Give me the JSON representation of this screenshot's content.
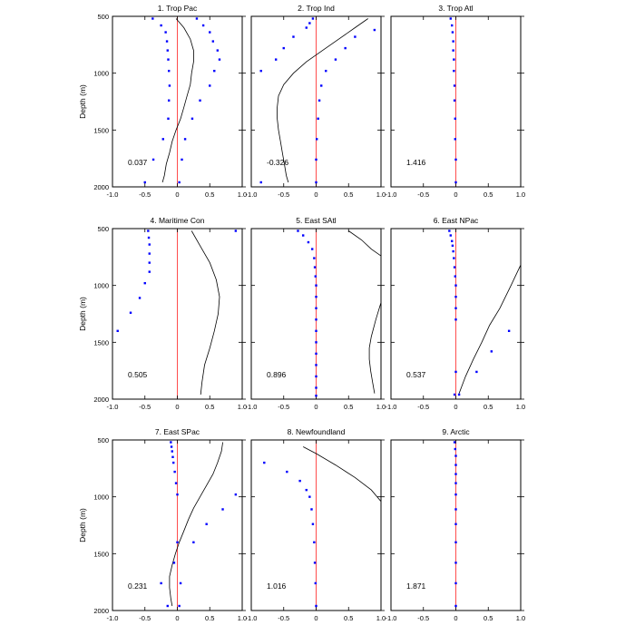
{
  "figure": {
    "ylabel": "Depth (m)",
    "xticks": [
      "-1.0",
      "-0.5",
      "0",
      "0.5",
      "1.0"
    ],
    "yticks": [
      "500",
      "1000",
      "1500",
      "2000"
    ]
  },
  "chart_data": [
    {
      "type": "scatter",
      "title": "1. Trop Pac",
      "annotation": "0.037",
      "xlim": [
        -1,
        1
      ],
      "ylim": [
        500,
        2000
      ],
      "points": [
        [
          -0.38,
          520
        ],
        [
          0.3,
          520
        ],
        [
          -0.25,
          580
        ],
        [
          0.4,
          580
        ],
        [
          -0.18,
          640
        ],
        [
          0.5,
          640
        ],
        [
          -0.16,
          720
        ],
        [
          0.55,
          720
        ],
        [
          -0.15,
          800
        ],
        [
          0.62,
          800
        ],
        [
          -0.14,
          880
        ],
        [
          0.65,
          880
        ],
        [
          -0.13,
          980
        ],
        [
          0.57,
          980
        ],
        [
          -0.12,
          1110
        ],
        [
          0.5,
          1110
        ],
        [
          -0.13,
          1240
        ],
        [
          0.35,
          1240
        ],
        [
          -0.14,
          1400
        ],
        [
          0.23,
          1400
        ],
        [
          -0.22,
          1580
        ],
        [
          0.12,
          1580
        ],
        [
          -0.37,
          1760
        ],
        [
          0.07,
          1760
        ],
        [
          -0.5,
          1960
        ],
        [
          0.03,
          1960
        ]
      ],
      "curve": [
        [
          -0.02,
          520
        ],
        [
          0.1,
          600
        ],
        [
          0.2,
          700
        ],
        [
          0.25,
          800
        ],
        [
          0.25,
          900
        ],
        [
          0.22,
          1000
        ],
        [
          0.2,
          1100
        ],
        [
          0.15,
          1200
        ],
        [
          0.1,
          1300
        ],
        [
          0.05,
          1400
        ],
        [
          -0.02,
          1500
        ],
        [
          -0.08,
          1600
        ],
        [
          -0.12,
          1700
        ],
        [
          -0.17,
          1800
        ],
        [
          -0.2,
          1900
        ],
        [
          -0.23,
          1960
        ]
      ]
    },
    {
      "type": "scatter",
      "title": "2. Trop Ind",
      "annotation": "-0.326",
      "xlim": [
        -1,
        1
      ],
      "ylim": [
        500,
        2000
      ],
      "points": [
        [
          -0.05,
          520
        ],
        [
          -0.1,
          560
        ],
        [
          -0.15,
          600
        ],
        [
          0.9,
          620
        ],
        [
          -0.35,
          680
        ],
        [
          0.6,
          680
        ],
        [
          -0.5,
          780
        ],
        [
          0.45,
          780
        ],
        [
          -0.62,
          880
        ],
        [
          0.3,
          880
        ],
        [
          -0.85,
          980
        ],
        [
          0.15,
          980
        ],
        [
          0.08,
          1110
        ],
        [
          0.05,
          1240
        ],
        [
          0.03,
          1400
        ],
        [
          0.01,
          1580
        ],
        [
          0.0,
          1760
        ],
        [
          0.0,
          1960
        ],
        [
          -0.85,
          1960
        ]
      ],
      "curve": [
        [
          0.8,
          520
        ],
        [
          0.6,
          600
        ],
        [
          0.35,
          700
        ],
        [
          0.1,
          800
        ],
        [
          -0.15,
          900
        ],
        [
          -0.35,
          1000
        ],
        [
          -0.5,
          1100
        ],
        [
          -0.58,
          1200
        ],
        [
          -0.6,
          1300
        ],
        [
          -0.6,
          1400
        ],
        [
          -0.58,
          1500
        ],
        [
          -0.55,
          1600
        ],
        [
          -0.52,
          1700
        ],
        [
          -0.49,
          1800
        ],
        [
          -0.46,
          1900
        ],
        [
          -0.43,
          1960
        ]
      ]
    },
    {
      "type": "scatter",
      "title": "3. Trop Atl",
      "annotation": "1.416",
      "xlim": [
        -1,
        1
      ],
      "ylim": [
        500,
        2000
      ],
      "points": [
        [
          -0.08,
          520
        ],
        [
          -0.06,
          580
        ],
        [
          -0.05,
          640
        ],
        [
          -0.04,
          720
        ],
        [
          -0.04,
          800
        ],
        [
          -0.03,
          880
        ],
        [
          -0.03,
          980
        ],
        [
          -0.02,
          1110
        ],
        [
          -0.02,
          1240
        ],
        [
          -0.01,
          1400
        ],
        [
          -0.01,
          1580
        ],
        [
          0.0,
          1760
        ],
        [
          0.0,
          1960
        ]
      ],
      "curve": []
    },
    {
      "type": "scatter",
      "title": "4. Maritime Con",
      "annotation": "0.505",
      "xlim": [
        -1,
        1
      ],
      "ylim": [
        500,
        2000
      ],
      "points": [
        [
          -0.45,
          520
        ],
        [
          0.9,
          520
        ],
        [
          -0.44,
          580
        ],
        [
          -0.43,
          640
        ],
        [
          -0.43,
          720
        ],
        [
          -0.43,
          800
        ],
        [
          -0.43,
          880
        ],
        [
          -0.5,
          980
        ],
        [
          -0.58,
          1110
        ],
        [
          -0.72,
          1240
        ],
        [
          -0.92,
          1400
        ]
      ],
      "curve": [
        [
          0.22,
          520
        ],
        [
          0.35,
          650
        ],
        [
          0.5,
          800
        ],
        [
          0.6,
          950
        ],
        [
          0.65,
          1100
        ],
        [
          0.63,
          1250
        ],
        [
          0.57,
          1400
        ],
        [
          0.5,
          1550
        ],
        [
          0.42,
          1700
        ],
        [
          0.38,
          1850
        ],
        [
          0.36,
          1960
        ]
      ]
    },
    {
      "type": "scatter",
      "title": "5. East SAtl",
      "annotation": "0.896",
      "xlim": [
        -1,
        1
      ],
      "ylim": [
        500,
        2000
      ],
      "points": [
        [
          -0.28,
          520
        ],
        [
          -0.2,
          560
        ],
        [
          -0.12,
          620
        ],
        [
          -0.06,
          680
        ],
        [
          -0.03,
          760
        ],
        [
          -0.02,
          840
        ],
        [
          -0.01,
          920
        ],
        [
          0.0,
          1000
        ],
        [
          0.0,
          1100
        ],
        [
          0.0,
          1200
        ],
        [
          0.0,
          1300
        ],
        [
          0.0,
          1400
        ],
        [
          0.0,
          1500
        ],
        [
          0.0,
          1600
        ],
        [
          0.0,
          1700
        ],
        [
          0.0,
          1800
        ],
        [
          0.0,
          1900
        ],
        [
          0.0,
          1970
        ]
      ],
      "curve": [
        [
          0.5,
          520
        ],
        [
          0.7,
          600
        ],
        [
          0.85,
          680
        ],
        [
          1.0,
          740
        ]
      ],
      "curve2": [
        [
          1.0,
          1150
        ],
        [
          0.92,
          1300
        ],
        [
          0.85,
          1450
        ],
        [
          0.82,
          1550
        ],
        [
          0.82,
          1650
        ],
        [
          0.84,
          1750
        ],
        [
          0.87,
          1850
        ],
        [
          0.9,
          1950
        ]
      ]
    },
    {
      "type": "scatter",
      "title": "6. East NPac",
      "annotation": "0.537",
      "xlim": [
        -1,
        1
      ],
      "ylim": [
        500,
        2000
      ],
      "points": [
        [
          -0.1,
          520
        ],
        [
          -0.08,
          560
        ],
        [
          -0.06,
          610
        ],
        [
          -0.05,
          650
        ],
        [
          -0.04,
          700
        ],
        [
          -0.03,
          760
        ],
        [
          -0.02,
          840
        ],
        [
          -0.01,
          920
        ],
        [
          0.0,
          1000
        ],
        [
          0.0,
          1100
        ],
        [
          0.0,
          1200
        ],
        [
          0.0,
          1300
        ],
        [
          0.82,
          1400
        ],
        [
          0.55,
          1580
        ],
        [
          0.32,
          1760
        ],
        [
          0.0,
          1760
        ],
        [
          0.05,
          1960
        ],
        [
          -0.02,
          1960
        ]
      ],
      "curve": [
        [
          1.0,
          820
        ],
        [
          0.85,
          1000
        ],
        [
          0.68,
          1200
        ],
        [
          0.52,
          1350
        ],
        [
          0.4,
          1500
        ],
        [
          0.27,
          1650
        ],
        [
          0.15,
          1800
        ],
        [
          0.05,
          1950
        ]
      ]
    },
    {
      "type": "scatter",
      "title": "7. East SPac",
      "annotation": "0.231",
      "xlim": [
        -1,
        1
      ],
      "ylim": [
        500,
        2000
      ],
      "points": [
        [
          -0.1,
          520
        ],
        [
          -0.09,
          560
        ],
        [
          -0.08,
          600
        ],
        [
          -0.07,
          650
        ],
        [
          -0.06,
          700
        ],
        [
          -0.04,
          780
        ],
        [
          -0.02,
          880
        ],
        [
          0.0,
          980
        ],
        [
          0.9,
          980
        ],
        [
          0.7,
          1110
        ],
        [
          0.45,
          1240
        ],
        [
          0.25,
          1400
        ],
        [
          0.0,
          1400
        ],
        [
          -0.05,
          1580
        ],
        [
          0.05,
          1760
        ],
        [
          -0.25,
          1760
        ],
        [
          0.03,
          1960
        ],
        [
          -0.15,
          1960
        ]
      ],
      "curve": [
        [
          0.7,
          520
        ],
        [
          0.68,
          600
        ],
        [
          0.62,
          700
        ],
        [
          0.55,
          800
        ],
        [
          0.45,
          900
        ],
        [
          0.35,
          1000
        ],
        [
          0.25,
          1100
        ],
        [
          0.17,
          1200
        ],
        [
          0.1,
          1300
        ],
        [
          0.03,
          1400
        ],
        [
          -0.03,
          1500
        ],
        [
          -0.08,
          1600
        ],
        [
          -0.12,
          1700
        ],
        [
          -0.12,
          1800
        ],
        [
          -0.1,
          1900
        ],
        [
          -0.08,
          1960
        ]
      ]
    },
    {
      "type": "scatter",
      "title": "8. Newfoundland",
      "annotation": "1.016",
      "xlim": [
        -1,
        1
      ],
      "ylim": [
        500,
        2000
      ],
      "points": [
        [
          -0.8,
          700
        ],
        [
          -0.45,
          780
        ],
        [
          -0.25,
          860
        ],
        [
          -0.15,
          940
        ],
        [
          -0.1,
          1000
        ],
        [
          -0.07,
          1110
        ],
        [
          -0.05,
          1240
        ],
        [
          -0.03,
          1400
        ],
        [
          -0.02,
          1580
        ],
        [
          -0.01,
          1760
        ],
        [
          0.0,
          1960
        ]
      ],
      "curve": [
        [
          -0.2,
          560
        ],
        [
          0.0,
          620
        ],
        [
          0.3,
          720
        ],
        [
          0.6,
          830
        ],
        [
          0.85,
          940
        ],
        [
          1.0,
          1040
        ]
      ]
    },
    {
      "type": "scatter",
      "title": "9. Arctic",
      "annotation": "1.871",
      "xlim": [
        -1,
        1
      ],
      "ylim": [
        500,
        2000
      ],
      "points": [
        [
          -0.02,
          520
        ],
        [
          -0.01,
          580
        ],
        [
          0.0,
          640
        ],
        [
          0.0,
          720
        ],
        [
          0.0,
          800
        ],
        [
          0.0,
          880
        ],
        [
          0.0,
          980
        ],
        [
          0.0,
          1110
        ],
        [
          0.0,
          1240
        ],
        [
          0.0,
          1400
        ],
        [
          0.0,
          1580
        ],
        [
          0.0,
          1760
        ],
        [
          0.0,
          1960
        ]
      ],
      "curve": []
    }
  ]
}
